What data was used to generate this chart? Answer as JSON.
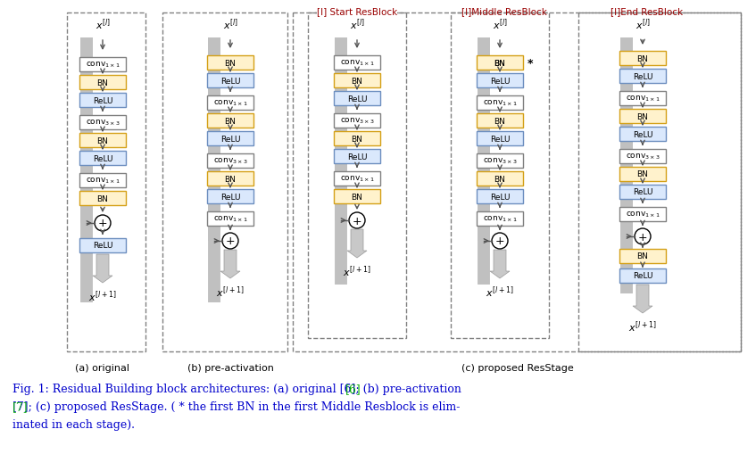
{
  "fig_width": 8.47,
  "fig_height": 5.1,
  "bg_color": "#ffffff",
  "colors": {
    "conv_fill": "#ffffff",
    "conv_edge": "#808080",
    "bn_fill": "#fff2cc",
    "bn_edge": "#d4a017",
    "relu_fill": "#dae8fc",
    "relu_edge": "#6c8ebf",
    "arrow_color": "#c0c0c0",
    "skip_line": "#808080",
    "plus_fill": "#ffffff",
    "plus_edge": "#000000",
    "dashed_box": "#808080",
    "title_red": "#990000",
    "text_blue": "#0000cc",
    "text_black": "#000000"
  },
  "caption_line1": "Fig. 1: Residual Building block architectures: (a) original [6]; (b) pre-activation",
  "caption_line2": "[7]; (c) proposed ResStage. ( * the first BN in the first Middle Resblock is elim-",
  "caption_line3": "inated in each stage).",
  "sub_a": "(a) original",
  "sub_b": "(b) pre-activation",
  "sub_c": "(c) proposed ResStage"
}
